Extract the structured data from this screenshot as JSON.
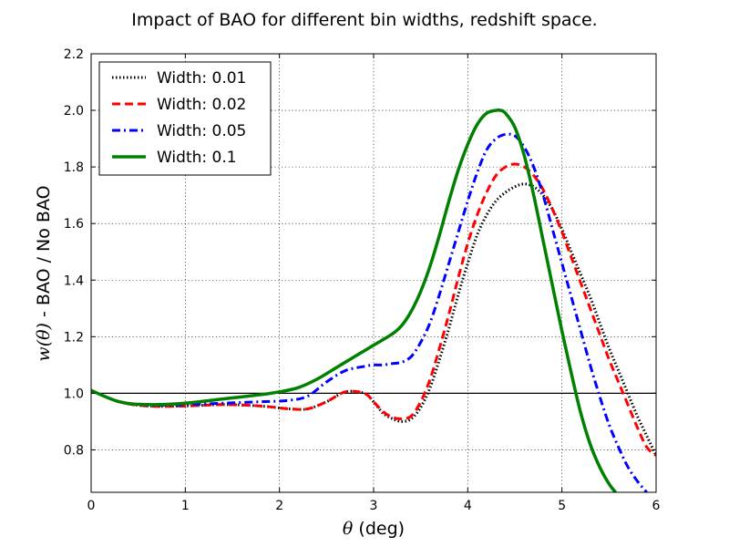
{
  "chart_data": {
    "type": "line",
    "title": "Impact of BAO for different bin widths, redshift space.",
    "xlabel": "θ (deg)",
    "xlabel_symbol": "θ",
    "xlabel_unit": " (deg)",
    "ylabel": "w(θ) - BAO / No BAO",
    "ylabel_symbol": "w(θ)",
    "ylabel_rest": " - BAO / No BAO",
    "xlim": [
      0,
      6
    ],
    "ylim": [
      0.65,
      2.2
    ],
    "xticks": [
      0,
      1,
      2,
      3,
      4,
      5,
      6
    ],
    "xtick_labels": [
      "0",
      "1",
      "2",
      "3",
      "4",
      "5",
      "6"
    ],
    "yticks": [
      0.8,
      1.0,
      1.2,
      1.4,
      1.6,
      1.8,
      2.0,
      2.2
    ],
    "ytick_labels": [
      "0.8",
      "1.0",
      "1.2",
      "1.4",
      "1.6",
      "1.8",
      "2.0",
      "2.2"
    ],
    "grid": true,
    "reference_line": 1.0,
    "legend_position": "top-left",
    "series": [
      {
        "name": "Width: 0.01",
        "color": "#000000",
        "style": "dotted",
        "x": [
          0,
          0.3,
          0.6,
          1.0,
          1.4,
          1.8,
          2.1,
          2.3,
          2.5,
          2.7,
          2.9,
          3.0,
          3.1,
          3.2,
          3.3,
          3.4,
          3.5,
          3.6,
          3.7,
          3.8,
          3.9,
          4.0,
          4.1,
          4.2,
          4.3,
          4.4,
          4.5,
          4.6,
          4.7,
          4.8,
          4.9,
          5.0,
          5.1,
          5.2,
          5.3,
          5.4,
          5.5,
          5.6,
          5.7,
          5.8,
          5.9,
          6.0
        ],
        "y": [
          1.01,
          0.97,
          0.955,
          0.955,
          0.96,
          0.955,
          0.945,
          0.945,
          0.97,
          1.005,
          1.0,
          0.97,
          0.93,
          0.91,
          0.9,
          0.91,
          0.95,
          1.02,
          1.12,
          1.23,
          1.35,
          1.46,
          1.56,
          1.63,
          1.68,
          1.71,
          1.73,
          1.74,
          1.73,
          1.7,
          1.65,
          1.58,
          1.5,
          1.42,
          1.34,
          1.25,
          1.16,
          1.08,
          1.0,
          0.92,
          0.85,
          0.78
        ]
      },
      {
        "name": "Width: 0.02",
        "color": "#ff0000",
        "style": "dashed",
        "x": [
          0,
          0.3,
          0.6,
          1.0,
          1.4,
          1.8,
          2.1,
          2.3,
          2.5,
          2.7,
          2.9,
          3.0,
          3.1,
          3.2,
          3.3,
          3.4,
          3.5,
          3.6,
          3.7,
          3.8,
          3.9,
          4.0,
          4.1,
          4.2,
          4.3,
          4.4,
          4.5,
          4.6,
          4.7,
          4.8,
          4.9,
          5.0,
          5.1,
          5.2,
          5.3,
          5.4,
          5.5,
          5.6,
          5.7,
          5.8,
          5.9,
          6.0
        ],
        "y": [
          1.01,
          0.97,
          0.955,
          0.955,
          0.96,
          0.955,
          0.945,
          0.945,
          0.97,
          1.005,
          1.0,
          0.97,
          0.935,
          0.915,
          0.91,
          0.92,
          0.97,
          1.05,
          1.16,
          1.28,
          1.41,
          1.53,
          1.63,
          1.71,
          1.77,
          1.8,
          1.81,
          1.8,
          1.77,
          1.72,
          1.65,
          1.57,
          1.48,
          1.39,
          1.3,
          1.21,
          1.12,
          1.04,
          0.96,
          0.88,
          0.81,
          0.78
        ]
      },
      {
        "name": "Width: 0.05",
        "color": "#0000ff",
        "style": "dashdot",
        "x": [
          0,
          0.3,
          0.6,
          1.0,
          1.4,
          1.8,
          2.1,
          2.3,
          2.5,
          2.7,
          2.9,
          3.0,
          3.1,
          3.2,
          3.3,
          3.4,
          3.5,
          3.6,
          3.7,
          3.8,
          3.9,
          4.0,
          4.1,
          4.2,
          4.3,
          4.4,
          4.5,
          4.6,
          4.7,
          4.8,
          4.9,
          5.0,
          5.1,
          5.2,
          5.3,
          5.4,
          5.5,
          5.6,
          5.7,
          5.8,
          5.9
        ],
        "y": [
          1.01,
          0.97,
          0.958,
          0.96,
          0.965,
          0.97,
          0.975,
          0.99,
          1.04,
          1.08,
          1.095,
          1.1,
          1.1,
          1.105,
          1.11,
          1.13,
          1.18,
          1.25,
          1.35,
          1.46,
          1.57,
          1.68,
          1.78,
          1.86,
          1.9,
          1.915,
          1.91,
          1.87,
          1.8,
          1.7,
          1.58,
          1.46,
          1.34,
          1.22,
          1.1,
          0.99,
          0.89,
          0.81,
          0.74,
          0.69,
          0.65
        ]
      },
      {
        "name": "Width: 0.1",
        "color": "#008000",
        "style": "solid",
        "x": [
          0,
          0.3,
          0.6,
          1.0,
          1.4,
          1.8,
          2.0,
          2.2,
          2.4,
          2.6,
          2.8,
          3.0,
          3.2,
          3.3,
          3.4,
          3.5,
          3.6,
          3.7,
          3.8,
          3.9,
          4.0,
          4.1,
          4.2,
          4.3,
          4.35,
          4.4,
          4.5,
          4.6,
          4.7,
          4.8,
          4.9,
          5.0,
          5.1,
          5.2,
          5.3,
          5.4,
          5.5,
          5.57
        ],
        "y": [
          1.01,
          0.97,
          0.96,
          0.965,
          0.98,
          0.995,
          1.005,
          1.02,
          1.05,
          1.09,
          1.13,
          1.17,
          1.21,
          1.24,
          1.29,
          1.36,
          1.45,
          1.56,
          1.68,
          1.79,
          1.88,
          1.95,
          1.99,
          2.0,
          2.0,
          1.99,
          1.94,
          1.84,
          1.7,
          1.54,
          1.38,
          1.22,
          1.07,
          0.93,
          0.82,
          0.74,
          0.68,
          0.65
        ]
      }
    ]
  }
}
